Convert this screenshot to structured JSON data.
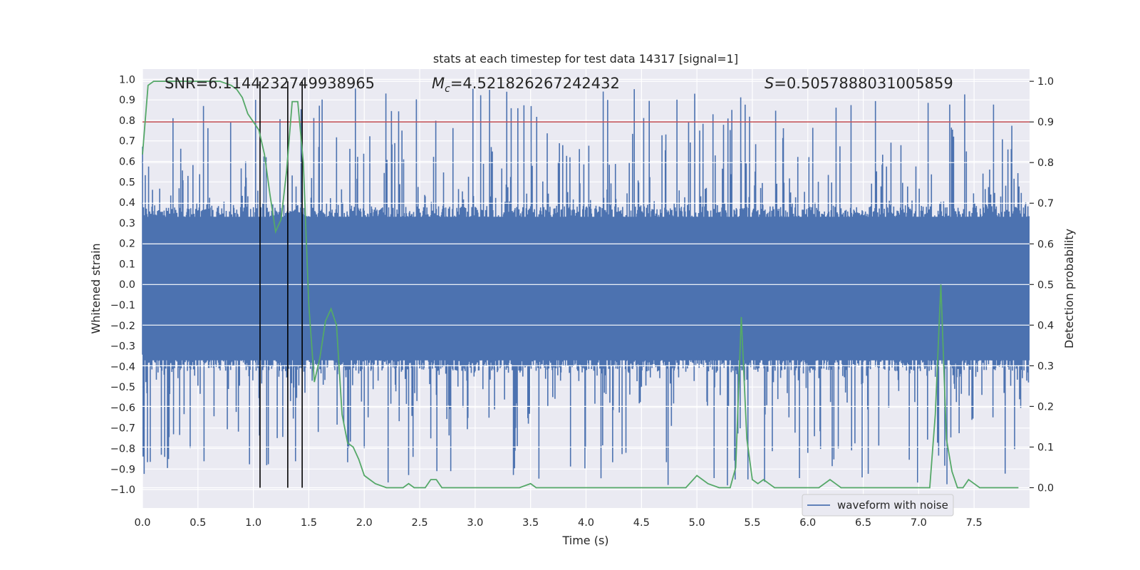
{
  "chart_data": {
    "type": "line",
    "title": "stats at each timestep for test data 14317 [signal=1]",
    "xlabel": "Time (s)",
    "ylabel_left": "Whitened strain",
    "ylabel_right": "Detection probability",
    "xlim": [
      0,
      8
    ],
    "ylim_left": [
      -1.09,
      1.05
    ],
    "ylim_right": [
      -0.05,
      1.03
    ],
    "x_ticks": [
      0.0,
      0.5,
      1.0,
      1.5,
      2.0,
      2.5,
      3.0,
      3.5,
      4.0,
      4.5,
      5.0,
      5.5,
      6.0,
      6.5,
      7.0,
      7.5
    ],
    "x_tick_labels": [
      "0.0",
      "0.5",
      "1.0",
      "1.5",
      "2.0",
      "2.5",
      "3.0",
      "3.5",
      "4.0",
      "4.5",
      "5.0",
      "5.5",
      "6.0",
      "6.5",
      "7.0",
      "7.5"
    ],
    "y_left_ticks": [
      -1.0,
      -0.9,
      -0.8,
      -0.7,
      -0.6,
      -0.5,
      -0.4,
      -0.3,
      -0.2,
      -0.1,
      0.0,
      0.1,
      0.2,
      0.3,
      0.4,
      0.5,
      0.6,
      0.7,
      0.8,
      0.9,
      1.0
    ],
    "y_left_tick_labels": [
      "−1.0",
      "−0.9",
      "−0.8",
      "−0.7",
      "−0.6",
      "−0.5",
      "−0.4",
      "−0.3",
      "−0.2",
      "−0.1",
      "0.0",
      "0.1",
      "0.2",
      "0.3",
      "0.4",
      "0.5",
      "0.6",
      "0.7",
      "0.8",
      "0.9",
      "1.0"
    ],
    "y_right_ticks": [
      0.0,
      0.1,
      0.2,
      0.3,
      0.4,
      0.5,
      0.6,
      0.7,
      0.8,
      0.9,
      1.0
    ],
    "y_right_tick_labels": [
      "0.0",
      "0.1",
      "0.2",
      "0.3",
      "0.4",
      "0.5",
      "0.6",
      "0.7",
      "0.8",
      "0.9",
      "1.0"
    ],
    "annotations": {
      "snr": "SNR=6.1144232749938965",
      "mc_symbol": "M",
      "mc_sub": "c",
      "mc_value": "=4.521826267242432",
      "s_symbol": "S",
      "s_value": "=0.5057888031005859"
    },
    "threshold": {
      "axis": "right",
      "value": 0.9,
      "color": "#c44e52"
    },
    "vertical_markers": [
      1.06,
      1.31,
      1.44
    ],
    "waveform": {
      "name": "waveform with noise",
      "color": "#4c72b0",
      "axis": "left",
      "t_start": 0.0,
      "t_end": 8.0,
      "sample_count": 1600,
      "typical_range": [
        -0.42,
        0.38
      ],
      "peak_range": [
        -0.98,
        0.96
      ]
    },
    "detection_probability": {
      "axis": "right",
      "color": "#55a868",
      "x": [
        0.0,
        0.05,
        0.1,
        0.2,
        0.3,
        0.4,
        0.5,
        0.6,
        0.7,
        0.8,
        0.85,
        0.9,
        0.95,
        1.0,
        1.05,
        1.1,
        1.15,
        1.2,
        1.25,
        1.3,
        1.35,
        1.4,
        1.45,
        1.5,
        1.55,
        1.6,
        1.65,
        1.7,
        1.75,
        1.8,
        1.85,
        1.9,
        1.95,
        2.0,
        2.05,
        2.1,
        2.2,
        2.3,
        2.35,
        2.4,
        2.45,
        2.5,
        2.55,
        2.6,
        2.65,
        2.7,
        2.75,
        2.8,
        2.9,
        3.0,
        3.2,
        3.4,
        3.5,
        3.55,
        3.6,
        3.7,
        3.8,
        4.0,
        4.2,
        4.4,
        4.6,
        4.8,
        4.9,
        5.0,
        5.05,
        5.1,
        5.2,
        5.3,
        5.35,
        5.4,
        5.45,
        5.5,
        5.55,
        5.6,
        5.65,
        5.7,
        5.75,
        5.8,
        5.9,
        6.0,
        6.1,
        6.2,
        6.25,
        6.3,
        6.4,
        6.5,
        6.6,
        6.8,
        6.9,
        7.0,
        7.05,
        7.1,
        7.15,
        7.2,
        7.25,
        7.3,
        7.35,
        7.4,
        7.45,
        7.5,
        7.55,
        7.6,
        7.7,
        7.8,
        7.9
      ],
      "y": [
        0.82,
        0.99,
        1.0,
        1.0,
        1.0,
        1.0,
        1.0,
        1.0,
        1.0,
        0.99,
        0.98,
        0.96,
        0.92,
        0.9,
        0.88,
        0.82,
        0.72,
        0.63,
        0.66,
        0.78,
        0.95,
        0.95,
        0.8,
        0.45,
        0.26,
        0.32,
        0.41,
        0.44,
        0.4,
        0.18,
        0.11,
        0.1,
        0.07,
        0.03,
        0.02,
        0.01,
        0.0,
        0.0,
        0.0,
        0.01,
        0.0,
        0.0,
        0.0,
        0.02,
        0.02,
        0.0,
        0.0,
        0.0,
        0.0,
        0.0,
        0.0,
        0.0,
        0.01,
        0.0,
        0.0,
        0.0,
        0.0,
        0.0,
        0.0,
        0.0,
        0.0,
        0.0,
        0.0,
        0.03,
        0.02,
        0.01,
        0.0,
        0.0,
        0.05,
        0.42,
        0.12,
        0.02,
        0.01,
        0.02,
        0.01,
        0.0,
        0.0,
        0.0,
        0.0,
        0.0,
        0.0,
        0.02,
        0.01,
        0.0,
        0.0,
        0.0,
        0.0,
        0.0,
        0.0,
        0.0,
        0.0,
        0.0,
        0.18,
        0.5,
        0.12,
        0.04,
        0.0,
        0.0,
        0.02,
        0.01,
        0.0,
        0.0,
        0.0,
        0.0,
        0.0
      ]
    },
    "legend": {
      "entries": [
        "waveform with noise"
      ],
      "placement": "lower-right"
    },
    "grid": true
  }
}
